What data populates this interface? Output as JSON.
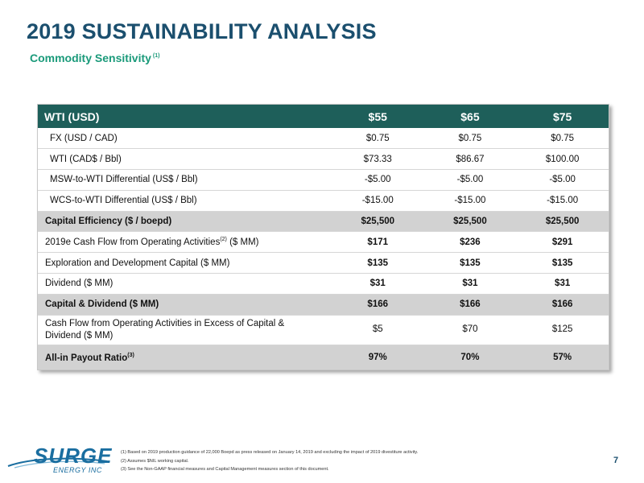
{
  "header": {
    "title": "2019 SUSTAINABILITY ANALYSIS",
    "subtitle": "Commodity Sensitivity",
    "subtitle_ref": "(1)"
  },
  "table": {
    "header": [
      "WTI (USD)",
      "$55",
      "$65",
      "$75"
    ],
    "rows": [
      {
        "label": "FX (USD / CAD)",
        "ref": "",
        "label_tail": "",
        "values": [
          "$0.75",
          "$0.75",
          "$0.75"
        ]
      },
      {
        "label": "WTI (CAD$ / Bbl)",
        "ref": "",
        "label_tail": "",
        "values": [
          "$73.33",
          "$86.67",
          "$100.00"
        ]
      },
      {
        "label": "MSW-to-WTI Differential (US$ / Bbl)",
        "ref": "",
        "label_tail": "",
        "values": [
          "-$5.00",
          "-$5.00",
          "-$5.00"
        ]
      },
      {
        "label": "WCS-to-WTI Differential (US$ / Bbl)",
        "ref": "",
        "label_tail": "",
        "values": [
          "-$15.00",
          "-$15.00",
          "-$15.00"
        ]
      },
      {
        "label": "Capital Efficiency ($ / boepd)",
        "ref": "",
        "label_tail": "",
        "values": [
          "$25,500",
          "$25,500",
          "$25,500"
        ]
      },
      {
        "label": "2019e Cash Flow from Operating Activities",
        "ref": "(2)",
        "label_tail": " ($ MM)",
        "values": [
          "$171",
          "$236",
          "$291"
        ]
      },
      {
        "label": "Exploration and Development Capital ($ MM)",
        "ref": "",
        "label_tail": "",
        "values": [
          "$135",
          "$135",
          "$135"
        ]
      },
      {
        "label": "Dividend ($ MM)",
        "ref": "",
        "label_tail": "",
        "values": [
          "$31",
          "$31",
          "$31"
        ]
      },
      {
        "label": "Capital & Dividend ($ MM)",
        "ref": "",
        "label_tail": "",
        "values": [
          "$166",
          "$166",
          "$166"
        ]
      },
      {
        "label": "Cash Flow from Operating Activities in Excess of Capital & Dividend ($ MM)",
        "ref": "",
        "label_tail": "",
        "values": [
          "$5",
          "$70",
          "$125"
        ]
      },
      {
        "label": "All-in Payout Ratio",
        "ref": "(3)",
        "label_tail": "",
        "values": [
          "97%",
          "70%",
          "57%"
        ]
      }
    ]
  },
  "footnotes": [
    "(1) Based on 2019 production guidance of 22,000 Boepd as press released on January 14, 2019 and excluding the impact of 2019 divestiture activity.",
    "(2) Assumes $NIL working capital.",
    "(3) See the Non-GAAP financial measures and Capital Management measures section of this document."
  ],
  "logo": {
    "name": "SURGE",
    "tagline": "ENERGY INC"
  },
  "page_number": "7",
  "colors": {
    "title": "#1b4f6e",
    "subtitle": "#1a9a7a",
    "table_header": "#1e5f5a",
    "highlight_row": "#d2d2d2"
  }
}
